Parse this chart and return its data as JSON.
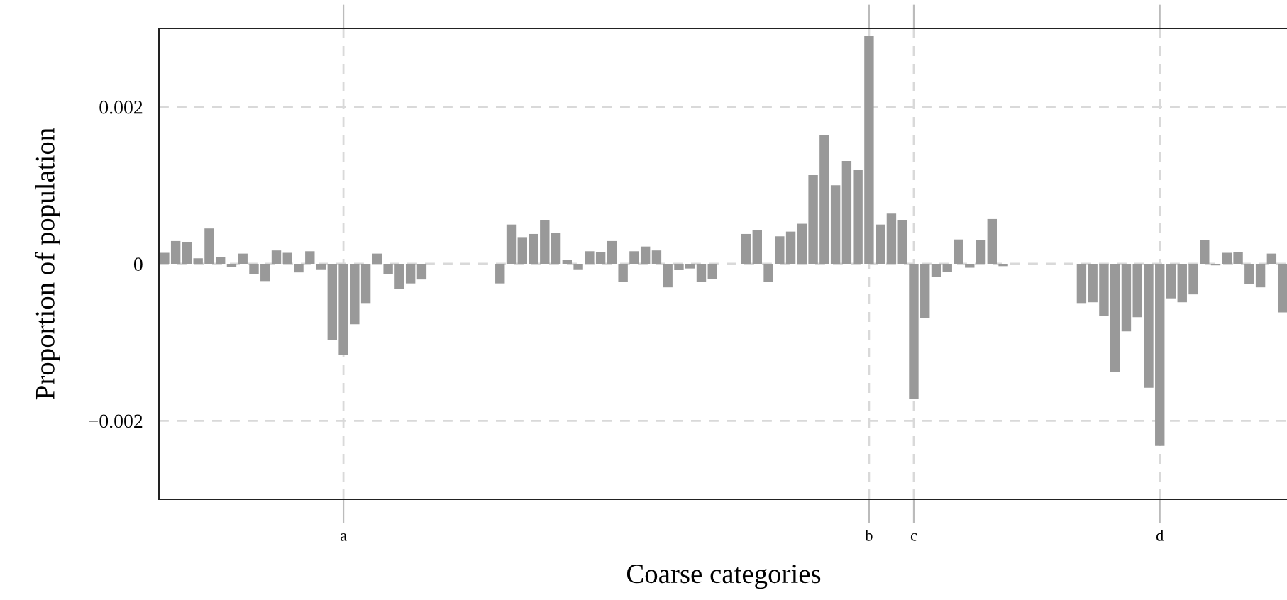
{
  "chart_data": {
    "type": "bar",
    "xlabel": "Coarse categories",
    "ylabel": "Proportion of population",
    "categories": [
      null,
      null,
      null,
      null,
      null,
      null,
      null,
      null,
      null,
      null,
      null,
      null,
      null,
      null,
      null,
      null,
      "a",
      null,
      null,
      null,
      null,
      null,
      null,
      null,
      null,
      null,
      null,
      null,
      null,
      null,
      null,
      null,
      null,
      null,
      null,
      null,
      null,
      null,
      null,
      null,
      null,
      null,
      null,
      null,
      null,
      null,
      null,
      null,
      null,
      null,
      null,
      null,
      null,
      null,
      null,
      null,
      null,
      null,
      null,
      null,
      null,
      null,
      null,
      "b",
      null,
      null,
      null,
      "c",
      null,
      null,
      null,
      null,
      null,
      null,
      null,
      null,
      null,
      null,
      null,
      null,
      null,
      null,
      null,
      null,
      null,
      null,
      null,
      null,
      null,
      "d",
      null,
      null,
      null,
      null,
      null,
      null,
      null,
      null,
      null,
      null,
      null
    ],
    "values": [
      0.00014,
      0.00029,
      0.00028,
      7e-05,
      0.00045,
      9e-05,
      -4e-05,
      0.00013,
      -0.00013,
      -0.00022,
      0.00017,
      0.00014,
      -0.00011,
      0.00016,
      -7e-05,
      -0.00097,
      -0.00116,
      -0.00077,
      -0.0005,
      0.00013,
      -0.00013,
      -0.00032,
      -0.00025,
      -0.0002,
      0,
      0,
      0,
      0,
      0,
      0,
      -0.00025,
      0.0005,
      0.00034,
      0.00038,
      0.00056,
      0.00039,
      5e-05,
      -7e-05,
      0.00016,
      0.00015,
      0.00029,
      -0.00023,
      0.00016,
      0.00022,
      0.00017,
      -0.0003,
      -8e-05,
      -6e-05,
      -0.00023,
      -0.00019,
      0,
      0,
      0.00038,
      0.00043,
      -0.00023,
      0.00035,
      0.00041,
      0.00051,
      0.00113,
      0.00164,
      0.001,
      0.00131,
      0.0012,
      0.0029,
      0.0005,
      0.00064,
      0.00056,
      -0.00172,
      -0.00069,
      -0.00017,
      -0.0001,
      0.00031,
      -5e-05,
      0.0003,
      0.00057,
      -3e-05,
      0,
      0,
      0,
      0,
      0,
      0,
      -0.0005,
      -0.00049,
      -0.00066,
      -0.00138,
      -0.00086,
      -0.00068,
      -0.00158,
      -0.00232,
      -0.00044,
      -0.00049,
      -0.00039,
      0.0003,
      -2e-05,
      0.00014,
      0.00015,
      -0.00026,
      -0.0003,
      0.00013,
      -0.00062
    ],
    "color": "#999999",
    "ylim": [
      -0.003,
      0.003
    ],
    "yticks": [
      {
        "value": -0.002,
        "label": "−0.002"
      },
      {
        "value": 0,
        "label": "0"
      },
      {
        "value": 0.002,
        "label": "0.002"
      }
    ],
    "grid": true
  }
}
